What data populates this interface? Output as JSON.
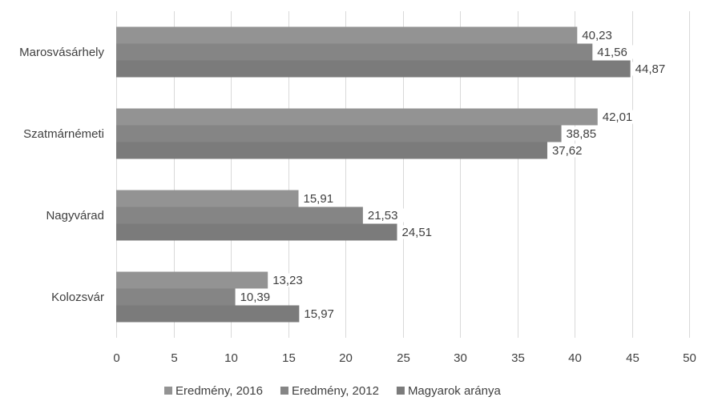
{
  "chart_data": {
    "type": "bar",
    "orientation": "horizontal",
    "categories": [
      "Marosvásárhely",
      "Szatmárnémeti",
      "Nagyvárad",
      "Kolozsvár"
    ],
    "series": [
      {
        "name": "Eredmény, 2016",
        "values": [
          "40,23",
          "42,01",
          "15,91",
          "13,23"
        ],
        "color": "#939393"
      },
      {
        "name": "Eredmény, 2012",
        "values": [
          "41,56",
          "38,85",
          "21,53",
          "10,39"
        ],
        "color": "#858585"
      },
      {
        "name": "Magyarok aránya",
        "values": [
          "44,87",
          "37,62",
          "24,51",
          "15,97"
        ],
        "color": "#7b7b7b"
      }
    ],
    "xlim": [
      0,
      50
    ],
    "xticks": [
      "0",
      "5",
      "10",
      "15",
      "20",
      "25",
      "30",
      "35",
      "40",
      "45",
      "50"
    ],
    "grid": true,
    "legend_position": "bottom",
    "data_labels": true
  }
}
